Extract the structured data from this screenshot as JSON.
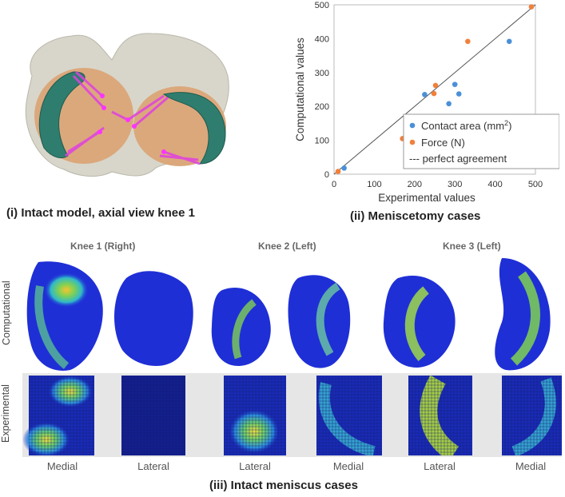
{
  "captions": {
    "intact_model": "(i) Intact model, axial view knee 1",
    "meniscetomy": "(ii) Meniscetomy cases",
    "intact_meniscus": "(iii) Intact meniscus cases"
  },
  "knees": [
    {
      "title": "Knee 1 (Right)",
      "columns": [
        "Medial",
        "Lateral"
      ]
    },
    {
      "title": "Knee 2 (Left)",
      "columns": [
        "Lateral",
        "Medial"
      ]
    },
    {
      "title": "Knee 3 (Left)",
      "columns": [
        "Lateral",
        "Medial"
      ]
    }
  ],
  "row_labels": {
    "computational": "Computational",
    "experimental": "Experimental"
  },
  "colors": {
    "contact_area": "#4a90d9",
    "force": "#f0803c",
    "agreement_line": "#555555",
    "contour_blue": "#1f2fd6",
    "meniscus_teal": "#2f7d6e",
    "cartilage_tan": "#d9a57a",
    "bone_gray": "#d6d4c8",
    "ligament_magenta": "#e040e0"
  },
  "chart_data": {
    "type": "scatter",
    "xlabel": "Experimental values",
    "ylabel": "Computational values",
    "xlim": [
      0,
      500
    ],
    "ylim": [
      0,
      500
    ],
    "xticks": [
      "0",
      "100",
      "200",
      "300",
      "400",
      "500"
    ],
    "yticks": [
      "0",
      "100",
      "200",
      "300",
      "400",
      "500"
    ],
    "grid": false,
    "legend_position": "bottom-right",
    "series": [
      {
        "name": "Contact area (mm²)",
        "legend_text": "Contact area (mm",
        "legend_sup": "2",
        "legend_tail": ")",
        "x": [
          25,
          225,
          285,
          300,
          310,
          435
        ],
        "y": [
          18,
          235,
          208,
          265,
          237,
          392
        ]
      },
      {
        "name": "Force (N)",
        "x": [
          10,
          170,
          248,
          252,
          332,
          490
        ],
        "y": [
          8,
          105,
          238,
          262,
          392,
          494
        ]
      }
    ],
    "reference_line": {
      "label": "--- perfect agreement",
      "x": [
        0,
        500
      ],
      "y": [
        0,
        500
      ]
    }
  }
}
